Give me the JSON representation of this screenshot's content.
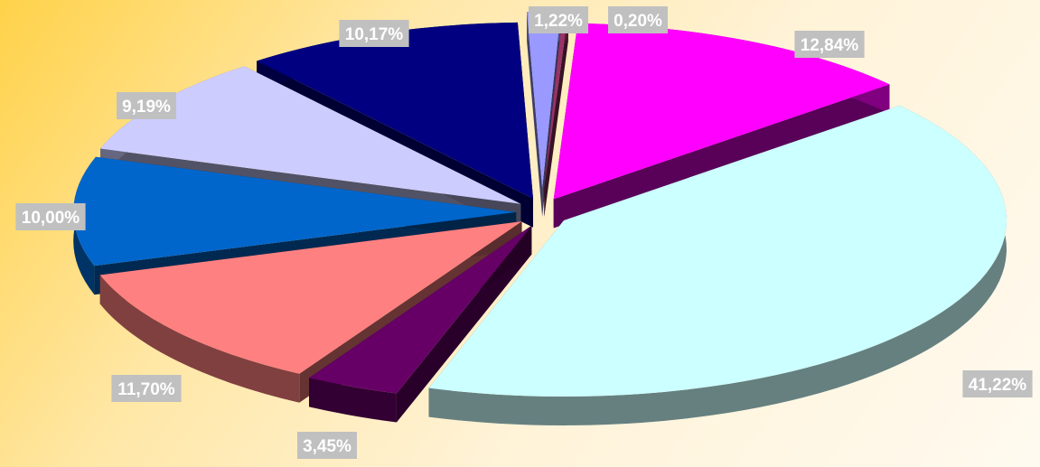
{
  "chart_data": {
    "type": "pie",
    "exploded": true,
    "three_d": true,
    "title": "",
    "legend": "none",
    "slices": [
      {
        "label": "1,22%",
        "value": 1.22,
        "color": "#9999ff"
      },
      {
        "label": "0,20%",
        "value": 0.2,
        "color": "#993366"
      },
      {
        "label": "12,84%",
        "value": 12.84,
        "color": "#ff00ff"
      },
      {
        "label": "41,22%",
        "value": 41.22,
        "color": "#ccffff"
      },
      {
        "label": "3,45%",
        "value": 3.45,
        "color": "#660066"
      },
      {
        "label": "11,70%",
        "value": 11.7,
        "color": "#ff8080"
      },
      {
        "label": "10,00%",
        "value": 10.0,
        "color": "#0066cc"
      },
      {
        "label": "9,19%",
        "value": 9.19,
        "color": "#ccccff"
      },
      {
        "label": "10,17%",
        "value": 10.17,
        "color": "#000080"
      }
    ]
  },
  "colors": {
    "background_start": "#ffd24a",
    "background_end": "#fffaf0",
    "label_box": "#c0c0c0",
    "label_text": "#ffffff"
  }
}
